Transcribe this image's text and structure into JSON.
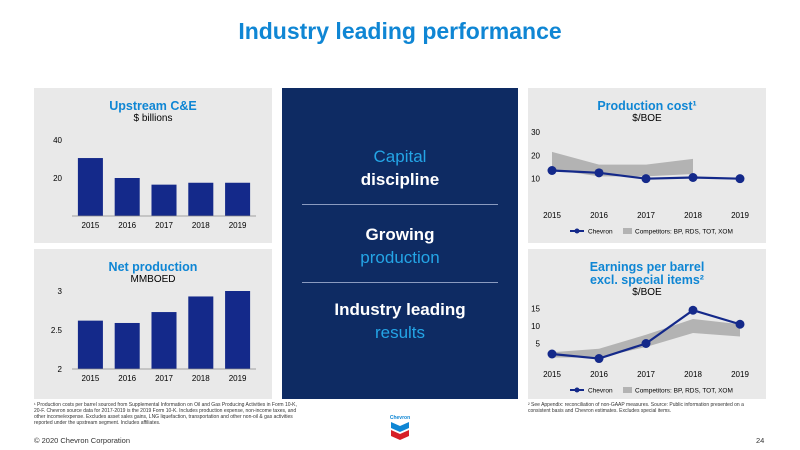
{
  "title": "Industry leading performance",
  "center": {
    "block1_line1": "Capital",
    "block1_line2": "discipline",
    "block2_line1": "Growing",
    "block2_line2": "production",
    "block3_line1": "Industry leading",
    "block3_line2": "results"
  },
  "footnotes": {
    "left": "¹ Production costs per barrel sourced from Supplemental Information on Oil and Gas Producing Activities in Form 10-K, 20-F. Chevron source data for 2017-2019 is the 2019 Form 10-K. Includes production expense, non-income taxes, and other income/expense. Excludes asset sales gains, LNG liquefaction, transportation and other non-oil & gas activities reported under the upstream segment. Includes affiliates.",
    "right": "² See Appendix: reconciliation of non-GAAP measures. Source: Public information presented on a consistent basis and Chevron estimates. Excludes special items."
  },
  "copyright": "© 2020 Chevron Corporation",
  "page_number": "24",
  "colors": {
    "accent": "#0f86d4",
    "navy": "#0e2b63",
    "bar": "#14298a",
    "band": "#b3b3b3",
    "panel": "#e9e9e9"
  },
  "chart_data": [
    {
      "id": "upstream",
      "type": "bar",
      "title": "Upstream C&E",
      "subtitle": "$ billions",
      "categories": [
        "2015",
        "2016",
        "2017",
        "2018",
        "2019"
      ],
      "values": [
        30.5,
        20,
        16.5,
        17.5,
        17.5
      ],
      "ylim": [
        0,
        40
      ],
      "yticks": [
        20,
        40
      ]
    },
    {
      "id": "netprod",
      "type": "bar",
      "title": "Net production",
      "subtitle": "MMBOED",
      "categories": [
        "2015",
        "2016",
        "2017",
        "2018",
        "2019"
      ],
      "values": [
        2.62,
        2.59,
        2.73,
        2.93,
        3.0
      ],
      "ylim": [
        2,
        3
      ],
      "yticks": [
        2,
        2.5,
        3
      ]
    },
    {
      "id": "prodcost",
      "type": "line",
      "title": "Production cost¹",
      "subtitle": "$/BOE",
      "x": [
        "2015",
        "2016",
        "2017",
        "2018",
        "2019"
      ],
      "ylim": [
        0,
        30
      ],
      "yticks": [
        10,
        20,
        30
      ],
      "series": [
        {
          "name": "Chevron",
          "values": [
            13.5,
            12.5,
            10,
            10.5,
            10
          ]
        }
      ],
      "band": {
        "name": "Competitors: BP, RDS, TOT, XOM",
        "upper": [
          21.5,
          16,
          16,
          18.5
        ],
        "lower": [
          14,
          11,
          11,
          12
        ]
      }
    },
    {
      "id": "eps",
      "type": "line",
      "title": "Earnings per barrel",
      "title2": "excl. special items²",
      "subtitle": "$/BOE",
      "x": [
        "2015",
        "2016",
        "2017",
        "2018",
        "2019"
      ],
      "ylim": [
        0,
        16
      ],
      "yticks": [
        5,
        10,
        15
      ],
      "series": [
        {
          "name": "Chevron",
          "values": [
            2,
            0.7,
            5,
            14.5,
            10.5
          ]
        }
      ],
      "band": {
        "name": "Competitors: BP, RDS, TOT, XOM",
        "upper": [
          2.5,
          3.5,
          7.5,
          12,
          10.5
        ],
        "lower": [
          1,
          1,
          4,
          8,
          7
        ]
      }
    }
  ]
}
